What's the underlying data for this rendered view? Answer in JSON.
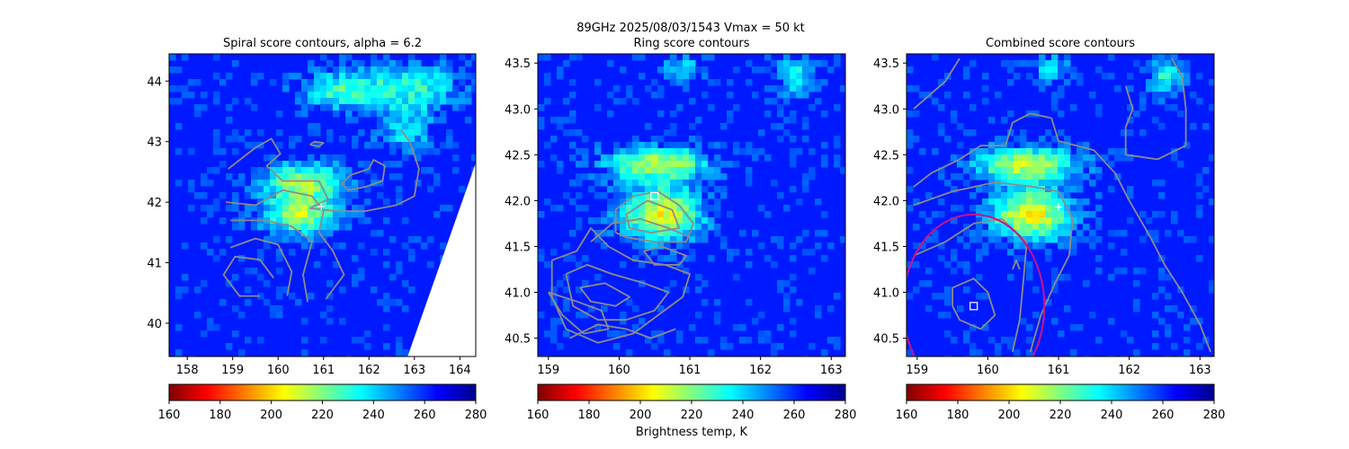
{
  "figure": {
    "suptitle_line1": "89GHz  2025/08/03/1543    Vmax = 50 kt",
    "colorbar_label": "Brightness temp, K"
  },
  "colormap": {
    "name": "jet_r",
    "vmin": 160,
    "vmax": 280,
    "ticks": [
      160,
      180,
      200,
      220,
      240,
      260,
      280
    ],
    "stops": [
      "#7f0000",
      "#ff0000",
      "#ff8000",
      "#ffff00",
      "#80ff80",
      "#00ffff",
      "#0080ff",
      "#0000ff",
      "#00008f"
    ]
  },
  "chart_data": [
    {
      "type": "heatmap",
      "title": "Spiral score contours, alpha =  6.2",
      "xlim": [
        157.6,
        164.35
      ],
      "ylim": [
        39.45,
        44.45
      ],
      "xticks": [
        158,
        159,
        160,
        161,
        162,
        163,
        164
      ],
      "yticks": [
        40,
        41,
        42,
        43,
        44
      ],
      "background_tb": 262,
      "swath_edge": [
        [
          164.35,
          42.65
        ],
        [
          162.85,
          39.45
        ]
      ],
      "features": [
        {
          "x": 160.6,
          "y": 42.35,
          "rx": 0.9,
          "ry": 0.28,
          "min_tb": 215
        },
        {
          "x": 160.5,
          "y": 41.8,
          "rx": 0.8,
          "ry": 0.32,
          "min_tb": 212
        },
        {
          "x": 161.4,
          "y": 43.85,
          "rx": 0.9,
          "ry": 0.3,
          "min_tb": 228
        },
        {
          "x": 163.0,
          "y": 43.9,
          "rx": 1.0,
          "ry": 0.4,
          "min_tb": 232
        },
        {
          "x": 162.8,
          "y": 43.2,
          "rx": 0.6,
          "ry": 0.35,
          "min_tb": 238
        }
      ],
      "center_marker": {
        "x": 160.95,
        "y": 41.93,
        "symbol": "+"
      },
      "contours": [
        [
          [
            158.9,
            42.55
          ],
          [
            159.5,
            42.9
          ],
          [
            159.85,
            43.05
          ],
          [
            160.05,
            42.8
          ],
          [
            159.75,
            42.6
          ],
          [
            160.1,
            42.35
          ],
          [
            160.9,
            42.35
          ],
          [
            161.1,
            42.05
          ],
          [
            160.7,
            41.9
          ],
          [
            161.3,
            41.85
          ],
          [
            161.9,
            41.85
          ],
          [
            162.6,
            41.95
          ],
          [
            163.0,
            42.1
          ],
          [
            163.1,
            42.55
          ],
          [
            162.9,
            43.0
          ],
          [
            162.7,
            43.2
          ]
        ],
        [
          [
            160.7,
            42.95
          ],
          [
            160.8,
            43.0
          ],
          [
            161.0,
            42.98
          ],
          [
            160.9,
            42.92
          ],
          [
            160.7,
            42.95
          ]
        ],
        [
          [
            162.0,
            42.55
          ],
          [
            161.6,
            42.45
          ],
          [
            161.4,
            42.3
          ],
          [
            161.55,
            42.2
          ],
          [
            161.9,
            42.25
          ],
          [
            162.3,
            42.35
          ],
          [
            162.35,
            42.6
          ],
          [
            162.1,
            42.7
          ],
          [
            162.0,
            42.55
          ]
        ],
        [
          [
            158.85,
            42.0
          ],
          [
            159.5,
            41.95
          ],
          [
            160.1,
            42.2
          ],
          [
            160.75,
            42.1
          ],
          [
            161.0,
            41.85
          ],
          [
            160.9,
            41.5
          ],
          [
            161.2,
            41.2
          ],
          [
            161.45,
            40.8
          ],
          [
            161.05,
            40.4
          ]
        ],
        [
          [
            158.95,
            41.7
          ],
          [
            159.7,
            41.7
          ],
          [
            160.3,
            41.6
          ],
          [
            160.75,
            41.35
          ],
          [
            160.55,
            40.8
          ],
          [
            160.65,
            40.35
          ]
        ],
        [
          [
            158.95,
            41.25
          ],
          [
            159.5,
            41.4
          ],
          [
            160.0,
            41.3
          ],
          [
            160.3,
            40.85
          ],
          [
            160.2,
            40.45
          ]
        ],
        [
          [
            159.9,
            40.75
          ],
          [
            159.6,
            41.05
          ],
          [
            159.05,
            41.1
          ],
          [
            158.8,
            40.8
          ],
          [
            159.15,
            40.45
          ],
          [
            159.6,
            40.45
          ]
        ]
      ]
    },
    {
      "type": "heatmap",
      "title": "Ring score contours",
      "xlim": [
        158.85,
        163.2
      ],
      "ylim": [
        40.3,
        43.6
      ],
      "xticks": [
        159,
        160,
        161,
        162,
        163
      ],
      "yticks": [
        40.5,
        41.0,
        41.5,
        42.0,
        42.5,
        43.0,
        43.5
      ],
      "background_tb": 262,
      "features": [
        {
          "x": 160.55,
          "y": 42.4,
          "rx": 0.7,
          "ry": 0.18,
          "min_tb": 212
        },
        {
          "x": 160.6,
          "y": 41.85,
          "rx": 0.55,
          "ry": 0.28,
          "min_tb": 205
        },
        {
          "x": 160.9,
          "y": 43.45,
          "rx": 0.25,
          "ry": 0.15,
          "min_tb": 238
        },
        {
          "x": 162.5,
          "y": 43.35,
          "rx": 0.25,
          "ry": 0.2,
          "min_tb": 232
        }
      ],
      "square_marker": {
        "x": 160.5,
        "y": 42.05,
        "symbol": "square"
      },
      "contours": [
        [
          [
            159.95,
            41.65
          ],
          [
            159.95,
            41.9
          ],
          [
            160.2,
            42.05
          ],
          [
            160.55,
            42.1
          ],
          [
            160.85,
            41.95
          ],
          [
            161.05,
            41.75
          ],
          [
            160.95,
            41.55
          ],
          [
            160.5,
            41.55
          ],
          [
            160.1,
            41.6
          ],
          [
            159.95,
            41.65
          ]
        ],
        [
          [
            160.1,
            41.85
          ],
          [
            160.4,
            42.0
          ],
          [
            160.75,
            41.9
          ],
          [
            160.85,
            41.7
          ],
          [
            160.45,
            41.65
          ],
          [
            160.15,
            41.7
          ],
          [
            160.1,
            41.85
          ]
        ],
        [
          [
            159.05,
            41.35
          ],
          [
            159.4,
            41.45
          ],
          [
            159.6,
            41.7
          ],
          [
            159.85,
            41.5
          ],
          [
            160.2,
            41.35
          ],
          [
            160.65,
            41.3
          ],
          [
            161.0,
            41.2
          ],
          [
            160.9,
            40.95
          ],
          [
            160.55,
            40.75
          ],
          [
            160.2,
            40.55
          ],
          [
            159.7,
            40.45
          ],
          [
            159.25,
            40.6
          ],
          [
            159.05,
            40.95
          ],
          [
            159.05,
            41.35
          ]
        ],
        [
          [
            159.25,
            41.2
          ],
          [
            159.55,
            41.3
          ],
          [
            159.9,
            41.2
          ],
          [
            160.35,
            41.1
          ],
          [
            160.7,
            41.0
          ],
          [
            160.5,
            40.8
          ],
          [
            160.1,
            40.7
          ],
          [
            159.7,
            40.7
          ],
          [
            159.35,
            40.85
          ],
          [
            159.25,
            41.2
          ]
        ],
        [
          [
            159.45,
            41.05
          ],
          [
            159.8,
            41.1
          ],
          [
            160.15,
            40.95
          ],
          [
            159.95,
            40.85
          ],
          [
            159.6,
            40.9
          ],
          [
            159.45,
            41.05
          ]
        ],
        [
          [
            159.0,
            41.0
          ],
          [
            159.2,
            40.75
          ],
          [
            159.5,
            40.55
          ],
          [
            159.85,
            40.6
          ],
          [
            159.75,
            40.8
          ],
          [
            159.4,
            40.9
          ],
          [
            159.0,
            41.0
          ]
        ],
        [
          [
            160.35,
            41.45
          ],
          [
            160.6,
            41.5
          ],
          [
            160.95,
            41.4
          ],
          [
            160.85,
            41.3
          ],
          [
            160.5,
            41.3
          ],
          [
            160.35,
            41.45
          ]
        ],
        [
          [
            159.6,
            41.55
          ],
          [
            159.9,
            41.75
          ],
          [
            160.3,
            41.8
          ],
          [
            160.7,
            41.7
          ],
          [
            161.0,
            41.6
          ]
        ],
        [
          [
            159.3,
            40.5
          ],
          [
            159.7,
            40.65
          ],
          [
            160.1,
            40.6
          ],
          [
            160.45,
            40.5
          ],
          [
            160.8,
            40.6
          ]
        ]
      ]
    },
    {
      "type": "heatmap",
      "title": "Combined score contours",
      "xlim": [
        158.85,
        163.2
      ],
      "ylim": [
        40.3,
        43.6
      ],
      "xticks": [
        159,
        160,
        161,
        162,
        163
      ],
      "yticks": [
        40.5,
        41.0,
        41.5,
        42.0,
        42.5,
        43.0,
        43.5
      ],
      "background_tb": 262,
      "features": [
        {
          "x": 160.55,
          "y": 42.4,
          "rx": 0.7,
          "ry": 0.18,
          "min_tb": 212
        },
        {
          "x": 160.6,
          "y": 41.85,
          "rx": 0.55,
          "ry": 0.28,
          "min_tb": 205
        },
        {
          "x": 160.9,
          "y": 43.45,
          "rx": 0.25,
          "ry": 0.15,
          "min_tb": 238
        },
        {
          "x": 162.5,
          "y": 43.35,
          "rx": 0.25,
          "ry": 0.2,
          "min_tb": 232
        }
      ],
      "center_marker": {
        "x": 161.0,
        "y": 41.93,
        "symbol": "+"
      },
      "square_marker": {
        "x": 159.8,
        "y": 40.85,
        "symbol": "square"
      },
      "circle": {
        "x": 159.8,
        "y": 40.85,
        "r": 1.0,
        "color": "#c8148c"
      },
      "contours": [
        [
          [
            158.95,
            43.0
          ],
          [
            159.4,
            43.3
          ],
          [
            159.6,
            43.55
          ]
        ],
        [
          [
            158.95,
            42.15
          ],
          [
            159.2,
            42.3
          ],
          [
            159.6,
            42.45
          ],
          [
            159.9,
            42.6
          ],
          [
            160.25,
            42.6
          ],
          [
            160.35,
            42.85
          ],
          [
            160.6,
            42.95
          ],
          [
            160.9,
            42.9
          ],
          [
            161.0,
            42.65
          ],
          [
            161.5,
            42.55
          ],
          [
            161.8,
            42.3
          ],
          [
            162.0,
            42.0
          ],
          [
            162.3,
            41.6
          ],
          [
            162.5,
            41.3
          ],
          [
            162.75,
            41.0
          ],
          [
            163.0,
            40.65
          ],
          [
            163.15,
            40.35
          ]
        ],
        [
          [
            158.95,
            41.95
          ],
          [
            159.5,
            42.1
          ],
          [
            160.1,
            42.2
          ],
          [
            160.65,
            42.15
          ],
          [
            161.0,
            42.1
          ],
          [
            161.2,
            41.8
          ],
          [
            161.15,
            41.4
          ],
          [
            160.95,
            41.1
          ],
          [
            160.75,
            40.75
          ],
          [
            160.6,
            40.35
          ]
        ],
        [
          [
            158.95,
            41.4
          ],
          [
            159.4,
            41.55
          ],
          [
            159.8,
            41.75
          ],
          [
            160.2,
            41.8
          ],
          [
            160.55,
            41.55
          ],
          [
            160.5,
            41.1
          ],
          [
            160.45,
            40.7
          ],
          [
            160.35,
            40.35
          ]
        ],
        [
          [
            159.5,
            40.85
          ],
          [
            159.5,
            41.05
          ],
          [
            159.8,
            41.15
          ],
          [
            160.0,
            41.0
          ],
          [
            160.1,
            40.75
          ],
          [
            159.9,
            40.6
          ],
          [
            159.6,
            40.7
          ],
          [
            159.5,
            40.85
          ]
        ],
        [
          [
            161.95,
            43.25
          ],
          [
            162.05,
            43.0
          ],
          [
            161.95,
            42.8
          ],
          [
            161.95,
            42.5
          ],
          [
            162.4,
            42.45
          ],
          [
            162.8,
            42.6
          ],
          [
            162.8,
            43.0
          ],
          [
            162.75,
            43.35
          ],
          [
            162.6,
            43.55
          ]
        ],
        [
          [
            160.35,
            41.25
          ],
          [
            160.4,
            41.35
          ],
          [
            160.45,
            41.25
          ]
        ]
      ]
    }
  ]
}
